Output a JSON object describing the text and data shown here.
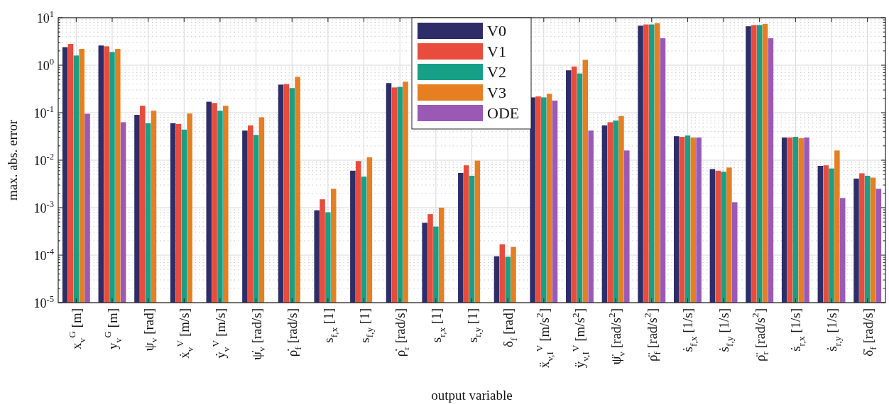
{
  "chart_data": {
    "type": "bar",
    "xlabel": "output variable",
    "ylabel": "max. abs. error",
    "log": "y",
    "grid": true,
    "legend": "top",
    "categories": [
      "x$_{v}$$^{G}$ [m]",
      "y$_{v}$$^{G}$ [m]",
      "ψ$_{v}$ [rad]",
      "ẋ$_{v}$$^{V}$ [m/s]",
      "ẏ$_{v}$$^{V}$ [m/s]",
      "ψ̇$_{v}$ [rad/s]",
      "ρ̇$_{f}$ [rad/s]",
      "s$_{f,x}$ [1]",
      "s$_{f,y}$ [1]",
      "ρ̇$_{r}$ [rad/s]",
      "s$_{r,x}$ [1]",
      "s$_{r,y}$ [1]",
      "δ$_{f}$ [rad]",
      "ẍ$_{v,I}$$^{V}$ [m/s$^{2}$]",
      "ÿ$_{v,I}$$^{V}$ [m/s$^{2}$]",
      "ψ̈$_{v}$ [rad/s$^{2}$]",
      "ρ̈$_{f}$ [rad/s$^{2}$]",
      "ṡ$_{f,x}$ [1/s]",
      "ṡ$_{f,y}$ [1/s]",
      "ρ̈$_{r}$ [rad/s$^{2}$]",
      "ṡ$_{r,x}$ [1/s]",
      "ṡ$_{r,y}$ [1/s]",
      "δ̇$_{f}$ [rad/s]"
    ],
    "ylim": [
      1e-05,
      10
    ],
    "yticks": [
      {
        "value": 1e-05,
        "label": "10$^{-5}$"
      },
      {
        "value": 0.0001,
        "label": "10$^{-4}$"
      },
      {
        "value": 0.001,
        "label": "10$^{-3}$"
      },
      {
        "value": 0.01,
        "label": "10$^{-2}$"
      },
      {
        "value": 0.1,
        "label": "10$^{-1}$"
      },
      {
        "value": 1,
        "label": "10$^{0}$"
      },
      {
        "value": 10,
        "label": "10$^{1}$"
      }
    ],
    "series": [
      {
        "name": "V0",
        "color": "#2e2d68",
        "values": [
          2.4,
          2.6,
          0.09,
          0.06,
          0.17,
          0.042,
          0.39,
          0.00088,
          0.006,
          0.42,
          0.00048,
          0.0054,
          9.5e-05,
          0.21,
          0.78,
          0.054,
          6.8,
          0.032,
          0.0065,
          6.6,
          0.03,
          0.0076,
          0.0041
        ]
      },
      {
        "name": "V1",
        "color": "#e74c3c",
        "values": [
          2.8,
          2.5,
          0.14,
          0.058,
          0.16,
          0.054,
          0.4,
          0.0015,
          0.0096,
          0.34,
          0.00073,
          0.0078,
          0.00017,
          0.22,
          0.94,
          0.063,
          7.2,
          0.031,
          0.006,
          7.0,
          0.03,
          0.0078,
          0.0053
        ]
      },
      {
        "name": "V2",
        "color": "#16a085",
        "values": [
          1.6,
          1.9,
          0.06,
          0.044,
          0.11,
          0.034,
          0.33,
          0.0008,
          0.0045,
          0.35,
          0.0004,
          0.0047,
          9.3e-05,
          0.21,
          0.67,
          0.068,
          7.2,
          0.033,
          0.0057,
          7.0,
          0.031,
          0.0067,
          0.0047
        ]
      },
      {
        "name": "V3",
        "color": "#e67e22",
        "values": [
          2.2,
          2.2,
          0.11,
          0.096,
          0.14,
          0.08,
          0.57,
          0.0025,
          0.0115,
          0.45,
          0.001,
          0.0098,
          0.00015,
          0.25,
          1.3,
          0.085,
          7.7,
          0.03,
          0.007,
          7.4,
          0.029,
          0.016,
          0.0043
        ]
      },
      {
        "name": "ODE",
        "color": "#9b59b6",
        "values": [
          0.095,
          0.063,
          null,
          null,
          null,
          null,
          null,
          null,
          null,
          null,
          null,
          null,
          null,
          0.18,
          0.042,
          0.016,
          3.7,
          0.03,
          0.0013,
          3.7,
          0.03,
          0.0016,
          0.0025
        ]
      }
    ]
  }
}
